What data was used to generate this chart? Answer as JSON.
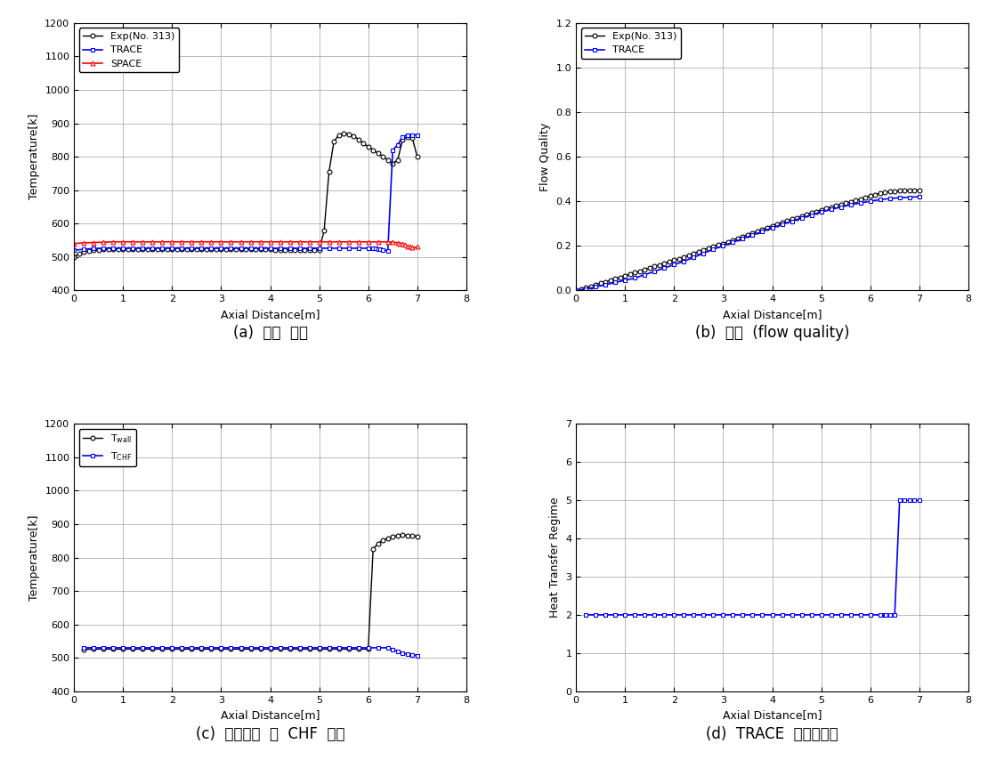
{
  "plot_a": {
    "title_caption": "(a)  벽면  온도",
    "xlabel": "Axial Distance[m]",
    "ylabel": "Temperature[k]",
    "xlim": [
      0,
      8
    ],
    "ylim": [
      400,
      1200
    ],
    "yticks": [
      400,
      500,
      600,
      700,
      800,
      900,
      1000,
      1100,
      1200
    ],
    "xticks": [
      0,
      1,
      2,
      3,
      4,
      5,
      6,
      7,
      8
    ],
    "exp_x": [
      0.0,
      0.1,
      0.2,
      0.3,
      0.4,
      0.5,
      0.6,
      0.7,
      0.8,
      0.9,
      1.0,
      1.1,
      1.2,
      1.3,
      1.4,
      1.5,
      1.6,
      1.7,
      1.8,
      1.9,
      2.0,
      2.1,
      2.2,
      2.3,
      2.4,
      2.5,
      2.6,
      2.7,
      2.8,
      2.9,
      3.0,
      3.1,
      3.2,
      3.3,
      3.4,
      3.5,
      3.6,
      3.7,
      3.8,
      3.9,
      4.0,
      4.1,
      4.2,
      4.3,
      4.4,
      4.5,
      4.6,
      4.7,
      4.8,
      4.9,
      5.0,
      5.1,
      5.2,
      5.3,
      5.4,
      5.5,
      5.6,
      5.7,
      5.8,
      5.9,
      6.0,
      6.1,
      6.2,
      6.3,
      6.4,
      6.5,
      6.6,
      6.7,
      6.8,
      6.9,
      7.0
    ],
    "exp_y": [
      500,
      510,
      515,
      518,
      520,
      521,
      522,
      522,
      523,
      523,
      523,
      523,
      523,
      523,
      523,
      523,
      523,
      523,
      523,
      523,
      523,
      523,
      523,
      523,
      523,
      523,
      523,
      523,
      523,
      523,
      523,
      523,
      523,
      523,
      523,
      523,
      523,
      523,
      523,
      523,
      522,
      521,
      521,
      521,
      521,
      521,
      521,
      521,
      521,
      521,
      521,
      578,
      755,
      845,
      865,
      870,
      868,
      862,
      852,
      840,
      830,
      820,
      810,
      800,
      790,
      780,
      790,
      850,
      860,
      855,
      800
    ],
    "trace_x": [
      0.0,
      0.2,
      0.4,
      0.6,
      0.8,
      1.0,
      1.2,
      1.4,
      1.6,
      1.8,
      2.0,
      2.2,
      2.4,
      2.6,
      2.8,
      3.0,
      3.2,
      3.4,
      3.6,
      3.8,
      4.0,
      4.2,
      4.4,
      4.6,
      4.8,
      5.0,
      5.2,
      5.4,
      5.6,
      5.8,
      6.0,
      6.1,
      6.15,
      6.2,
      6.25,
      6.3,
      6.4,
      6.5,
      6.6,
      6.7,
      6.8,
      6.9,
      7.0
    ],
    "trace_y": [
      520,
      523,
      525,
      526,
      526,
      526,
      526,
      526,
      526,
      526,
      526,
      526,
      526,
      526,
      526,
      526,
      526,
      526,
      526,
      526,
      526,
      526,
      526,
      526,
      526,
      526,
      526,
      526,
      526,
      526,
      526,
      526,
      525,
      524,
      522,
      520,
      519,
      820,
      835,
      860,
      865,
      865,
      865
    ],
    "space_x": [
      0.0,
      0.2,
      0.4,
      0.6,
      0.8,
      1.0,
      1.2,
      1.4,
      1.6,
      1.8,
      2.0,
      2.2,
      2.4,
      2.6,
      2.8,
      3.0,
      3.2,
      3.4,
      3.6,
      3.8,
      4.0,
      4.2,
      4.4,
      4.6,
      4.8,
      5.0,
      5.2,
      5.4,
      5.6,
      5.8,
      6.0,
      6.2,
      6.4,
      6.5,
      6.6,
      6.65,
      6.7,
      6.75,
      6.8,
      6.85,
      6.9,
      7.0
    ],
    "space_y": [
      540,
      542,
      543,
      544,
      545,
      545,
      545,
      545,
      545,
      545,
      545,
      545,
      545,
      545,
      545,
      545,
      545,
      545,
      545,
      545,
      545,
      545,
      545,
      545,
      545,
      545,
      545,
      545,
      545,
      545,
      545,
      545,
      545,
      544,
      542,
      540,
      538,
      536,
      532,
      530,
      528,
      530
    ]
  },
  "plot_b": {
    "title_caption": "(b)  건도  (flow quality)",
    "xlabel": "Axial Distance[m]",
    "ylabel": "Flow Quality",
    "xlim": [
      0,
      8
    ],
    "ylim": [
      0,
      1.2
    ],
    "yticks": [
      0,
      0.2,
      0.4,
      0.6,
      0.8,
      1.0,
      1.2
    ],
    "xticks": [
      0,
      1,
      2,
      3,
      4,
      5,
      6,
      7,
      8
    ],
    "exp_x": [
      0.0,
      0.1,
      0.2,
      0.3,
      0.4,
      0.5,
      0.6,
      0.7,
      0.8,
      0.9,
      1.0,
      1.1,
      1.2,
      1.3,
      1.4,
      1.5,
      1.6,
      1.7,
      1.8,
      1.9,
      2.0,
      2.1,
      2.2,
      2.3,
      2.4,
      2.5,
      2.6,
      2.7,
      2.8,
      2.9,
      3.0,
      3.1,
      3.2,
      3.3,
      3.4,
      3.5,
      3.6,
      3.7,
      3.8,
      3.9,
      4.0,
      4.1,
      4.2,
      4.3,
      4.4,
      4.5,
      4.6,
      4.7,
      4.8,
      4.9,
      5.0,
      5.1,
      5.2,
      5.3,
      5.4,
      5.5,
      5.6,
      5.7,
      5.8,
      5.9,
      6.0,
      6.1,
      6.2,
      6.3,
      6.4,
      6.5,
      6.6,
      6.7,
      6.8,
      6.9,
      7.0
    ],
    "exp_y": [
      0.0,
      0.005,
      0.012,
      0.018,
      0.025,
      0.032,
      0.038,
      0.045,
      0.052,
      0.058,
      0.065,
      0.072,
      0.079,
      0.086,
      0.093,
      0.1,
      0.107,
      0.114,
      0.121,
      0.128,
      0.135,
      0.142,
      0.15,
      0.158,
      0.166,
      0.174,
      0.182,
      0.19,
      0.198,
      0.206,
      0.21,
      0.218,
      0.226,
      0.234,
      0.242,
      0.25,
      0.258,
      0.266,
      0.274,
      0.282,
      0.29,
      0.298,
      0.305,
      0.312,
      0.319,
      0.326,
      0.333,
      0.34,
      0.347,
      0.354,
      0.361,
      0.367,
      0.373,
      0.379,
      0.385,
      0.391,
      0.397,
      0.403,
      0.41,
      0.417,
      0.424,
      0.43,
      0.436,
      0.44,
      0.443,
      0.445,
      0.447,
      0.449,
      0.45,
      0.45,
      0.45
    ],
    "trace_x": [
      0.0,
      0.2,
      0.4,
      0.6,
      0.8,
      1.0,
      1.2,
      1.4,
      1.6,
      1.8,
      2.0,
      2.2,
      2.4,
      2.6,
      2.8,
      3.0,
      3.2,
      3.4,
      3.6,
      3.8,
      4.0,
      4.2,
      4.4,
      4.6,
      4.8,
      5.0,
      5.2,
      5.4,
      5.6,
      5.8,
      6.0,
      6.2,
      6.4,
      6.6,
      6.8,
      7.0
    ],
    "trace_y": [
      0.0,
      0.005,
      0.015,
      0.025,
      0.035,
      0.045,
      0.055,
      0.07,
      0.085,
      0.1,
      0.115,
      0.13,
      0.148,
      0.166,
      0.184,
      0.2,
      0.216,
      0.232,
      0.248,
      0.264,
      0.28,
      0.296,
      0.31,
      0.325,
      0.338,
      0.352,
      0.363,
      0.374,
      0.384,
      0.392,
      0.4,
      0.407,
      0.412,
      0.416,
      0.418,
      0.42
    ]
  },
  "plot_c": {
    "title_caption": "(c)  벽면온도  및  CHF  온도",
    "xlabel": "Axial Distance[m]",
    "ylabel": "Temperature[k]",
    "xlim": [
      0,
      8
    ],
    "ylim": [
      400,
      1200
    ],
    "yticks": [
      400,
      500,
      600,
      700,
      800,
      900,
      1000,
      1100,
      1200
    ],
    "xticks": [
      0,
      1,
      2,
      3,
      4,
      5,
      6,
      7,
      8
    ],
    "twall_x": [
      0.2,
      0.4,
      0.6,
      0.8,
      1.0,
      1.2,
      1.4,
      1.6,
      1.8,
      2.0,
      2.2,
      2.4,
      2.6,
      2.8,
      3.0,
      3.2,
      3.4,
      3.6,
      3.8,
      4.0,
      4.2,
      4.4,
      4.6,
      4.8,
      5.0,
      5.2,
      5.4,
      5.6,
      5.8,
      6.0,
      6.1,
      6.2,
      6.3,
      6.4,
      6.5,
      6.6,
      6.7,
      6.8,
      6.9,
      7.0
    ],
    "twall_y": [
      525,
      526,
      526,
      526,
      526,
      526,
      526,
      526,
      526,
      526,
      526,
      526,
      526,
      526,
      526,
      526,
      526,
      526,
      526,
      526,
      526,
      526,
      526,
      526,
      526,
      526,
      526,
      526,
      526,
      526,
      826,
      842,
      852,
      858,
      863,
      866,
      868,
      866,
      865,
      864
    ],
    "tchf_x": [
      0.2,
      0.4,
      0.6,
      0.8,
      1.0,
      1.2,
      1.4,
      1.6,
      1.8,
      2.0,
      2.2,
      2.4,
      2.6,
      2.8,
      3.0,
      3.2,
      3.4,
      3.6,
      3.8,
      4.0,
      4.2,
      4.4,
      4.6,
      4.8,
      5.0,
      5.2,
      5.4,
      5.6,
      5.8,
      6.0,
      6.2,
      6.4,
      6.5,
      6.6,
      6.7,
      6.8,
      6.9,
      7.0
    ],
    "tchf_y": [
      530,
      530,
      530,
      530,
      530,
      530,
      530,
      530,
      530,
      530,
      530,
      530,
      530,
      530,
      530,
      530,
      530,
      530,
      530,
      530,
      530,
      530,
      530,
      530,
      530,
      530,
      530,
      530,
      530,
      530,
      530,
      530,
      525,
      520,
      515,
      510,
      508,
      507
    ]
  },
  "plot_d": {
    "title_caption": "(d)  TRACE  열전달영역",
    "xlabel": "Axial Distance[m]",
    "ylabel": "Heat Transfer Regime",
    "xlim": [
      0,
      8
    ],
    "ylim": [
      0,
      7
    ],
    "yticks": [
      0,
      1,
      2,
      3,
      4,
      5,
      6,
      7
    ],
    "xticks": [
      0,
      1,
      2,
      3,
      4,
      5,
      6,
      7,
      8
    ],
    "htr_x": [
      0.2,
      0.4,
      0.6,
      0.8,
      1.0,
      1.2,
      1.4,
      1.6,
      1.8,
      2.0,
      2.2,
      2.4,
      2.6,
      2.8,
      3.0,
      3.2,
      3.4,
      3.6,
      3.8,
      4.0,
      4.2,
      4.4,
      4.6,
      4.8,
      5.0,
      5.2,
      5.4,
      5.6,
      5.8,
      6.0,
      6.2,
      6.3,
      6.31,
      6.4,
      6.5,
      6.6,
      6.7,
      6.8,
      6.9,
      7.0
    ],
    "htr_y": [
      2,
      2,
      2,
      2,
      2,
      2,
      2,
      2,
      2,
      2,
      2,
      2,
      2,
      2,
      2,
      2,
      2,
      2,
      2,
      2,
      2,
      2,
      2,
      2,
      2,
      2,
      2,
      2,
      2,
      2,
      2,
      2,
      2,
      2,
      2,
      5,
      5,
      5,
      5,
      5
    ]
  },
  "colors": {
    "exp": "#000000",
    "trace": "#0000FF",
    "space": "#FF0000",
    "twall": "#000000",
    "tchf": "#0000FF",
    "htr": "#0000FF"
  },
  "bg_color": "#ffffff",
  "grid_color": "#b0b0b0"
}
